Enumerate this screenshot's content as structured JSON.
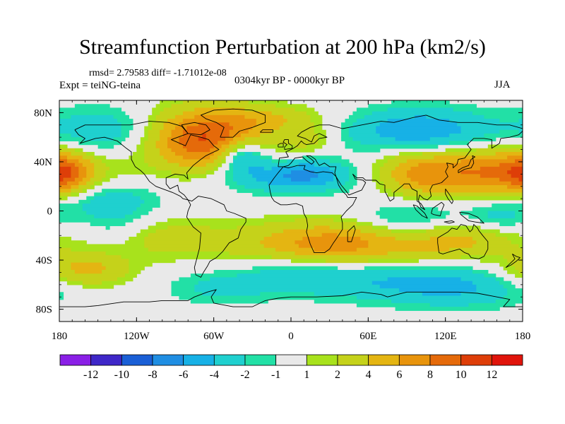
{
  "title": "Streamfunction Perturbation at 200 hPa (km2/s)",
  "stats_line": "rmsd= 2.79583 diff= -1.71012e-08",
  "experiment_line": "Expt = teiNG-teina",
  "period_line": "0304kyr BP - 0000kyr BP",
  "season": "JJA",
  "chart_data": {
    "type": "heatmap",
    "title": "Streamfunction Perturbation at 200 hPa (km2/s)",
    "projection": "cylindrical-equidistant",
    "xlim": [
      -180,
      180
    ],
    "ylim": [
      -90,
      90
    ],
    "x_ticks": [
      {
        "value": -180,
        "label": "180"
      },
      {
        "value": -120,
        "label": "120W"
      },
      {
        "value": -60,
        "label": "60W"
      },
      {
        "value": 0,
        "label": "0"
      },
      {
        "value": 60,
        "label": "60E"
      },
      {
        "value": 120,
        "label": "120E"
      },
      {
        "value": 180,
        "label": "180"
      }
    ],
    "y_ticks": [
      {
        "value": 80,
        "label": "80N"
      },
      {
        "value": 40,
        "label": "40N"
      },
      {
        "value": 0,
        "label": "0"
      },
      {
        "value": -40,
        "label": "40S"
      },
      {
        "value": -80,
        "label": "80S"
      }
    ],
    "colorbar": {
      "levels": [
        -12,
        -10,
        -8,
        -6,
        -4,
        -2,
        -1,
        1,
        2,
        4,
        6,
        8,
        10,
        12
      ],
      "labels": [
        "-12",
        "-10",
        "-8",
        "-6",
        "-4",
        "-2",
        "-1",
        "1",
        "2",
        "4",
        "6",
        "8",
        "10",
        "12"
      ],
      "colors": [
        "#8a1fe6",
        "#3f27c8",
        "#1a5fd6",
        "#1f8ee3",
        "#17b1e6",
        "#1fd0cf",
        "#22e0a6",
        "#e9e9e9",
        "#a8e21c",
        "#c5d21a",
        "#e4b512",
        "#e8940c",
        "#e56a0a",
        "#de3e08",
        "#e0140b"
      ]
    },
    "background_value": 0,
    "anomaly_centers": [
      {
        "name": "north-america-high",
        "lon": -65,
        "lat": 58,
        "value": 10.5,
        "rx": 32,
        "ry": 18
      },
      {
        "name": "north-atlantic-low",
        "lon": -38,
        "lat": 45,
        "value": -7.5,
        "rx": 14,
        "ry": 10
      },
      {
        "name": "atlantic-africa-low-band",
        "lon": -5,
        "lat": 27,
        "value": -4.5,
        "rx": 40,
        "ry": 9
      },
      {
        "name": "north-africa-low",
        "lon": 12,
        "lat": 32,
        "value": -3,
        "rx": 20,
        "ry": 8
      },
      {
        "name": "arctic-atlantic-high",
        "lon": -10,
        "lat": 75,
        "value": 3,
        "rx": 28,
        "ry": 8
      },
      {
        "name": "europe-high",
        "lon": 15,
        "lat": 58,
        "value": 2.5,
        "rx": 14,
        "ry": 8
      },
      {
        "name": "north-asia-low",
        "lon": 100,
        "lat": 65,
        "value": -6,
        "rx": 40,
        "ry": 13
      },
      {
        "name": "north-pacific-high",
        "lon": 150,
        "lat": 32,
        "value": 8,
        "rx": 40,
        "ry": 14
      },
      {
        "name": "asia-high-ridge",
        "lon": 95,
        "lat": 30,
        "value": 4,
        "rx": 22,
        "ry": 14
      },
      {
        "name": "dateline-high",
        "lon": -175,
        "lat": 30,
        "value": 6,
        "rx": 14,
        "ry": 12
      },
      {
        "name": "east-pacific-low",
        "lon": -145,
        "lat": 65,
        "value": -3.5,
        "rx": 30,
        "ry": 14
      },
      {
        "name": "tropical-pacific-low",
        "lon": -145,
        "lat": 10,
        "value": -3,
        "rx": 30,
        "ry": 10
      },
      {
        "name": "south-atlantic-high",
        "lon": 35,
        "lat": -27,
        "value": 7.5,
        "rx": 50,
        "ry": 13
      },
      {
        "name": "south-pacific-high",
        "lon": -110,
        "lat": -22,
        "value": 3.5,
        "rx": 40,
        "ry": 12
      },
      {
        "name": "southeast-pacific-low",
        "lon": -135,
        "lat": -15,
        "value": -3,
        "rx": 22,
        "ry": 14
      },
      {
        "name": "australia-high",
        "lon": 130,
        "lat": -22,
        "value": 4.5,
        "rx": 30,
        "ry": 12
      },
      {
        "name": "indian-ocean-low",
        "lon": 95,
        "lat": -8,
        "value": -4,
        "rx": 30,
        "ry": 12
      },
      {
        "name": "southern-ocean-low",
        "lon": 55,
        "lat": -55,
        "value": -3.5,
        "rx": 45,
        "ry": 12
      },
      {
        "name": "southern-ocean-low-east",
        "lon": 130,
        "lat": -62,
        "value": -4,
        "rx": 40,
        "ry": 12
      },
      {
        "name": "southwest-pacific-high",
        "lon": -160,
        "lat": -48,
        "value": 5,
        "rx": 25,
        "ry": 10
      },
      {
        "name": "drake-low",
        "lon": -55,
        "lat": -62,
        "value": -2.5,
        "rx": 30,
        "ry": 10
      },
      {
        "name": "south-atlantic-low",
        "lon": 0,
        "lat": -50,
        "value": -2.5,
        "rx": 25,
        "ry": 10
      },
      {
        "name": "pacific-southeast-asia-low",
        "lon": 160,
        "lat": -5,
        "value": -3,
        "rx": 20,
        "ry": 10
      }
    ]
  }
}
